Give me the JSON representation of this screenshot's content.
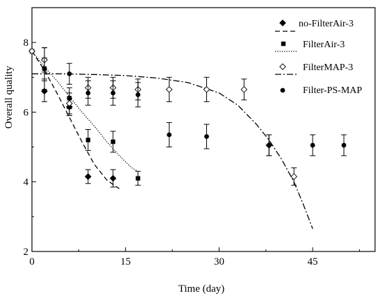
{
  "chart_data": {
    "type": "scatter",
    "xlabel": "Time (day)",
    "ylabel": "Overall quality",
    "xlim": [
      0,
      55
    ],
    "ylim": [
      2,
      9
    ],
    "xticks": [
      0,
      15,
      30,
      45
    ],
    "yticks": [
      2,
      4,
      6,
      8
    ],
    "grid": false,
    "legend_position": "top-right",
    "series": [
      {
        "name": "no-FilterAir-3",
        "marker": "filled-diamond",
        "line": "dashed",
        "points": [
          {
            "x": 0,
            "y": 7.75,
            "err": 0.0
          },
          {
            "x": 2,
            "y": 6.6,
            "err": 0.3
          },
          {
            "x": 6,
            "y": 6.15,
            "err": 0.25
          },
          {
            "x": 9,
            "y": 4.15,
            "err": 0.2
          },
          {
            "x": 13,
            "y": 4.1,
            "err": 0.25
          }
        ],
        "fit": [
          [
            0,
            7.75
          ],
          [
            2,
            7.2
          ],
          [
            4,
            6.55
          ],
          [
            6,
            5.85
          ],
          [
            8,
            5.15
          ],
          [
            10,
            4.5
          ],
          [
            12,
            4.05
          ],
          [
            14,
            3.8
          ]
        ]
      },
      {
        "name": "FilterAir-3",
        "marker": "filled-square",
        "line": "dotted",
        "points": [
          {
            "x": 0,
            "y": 7.75,
            "err": 0.0
          },
          {
            "x": 2,
            "y": 7.25,
            "err": 0.3
          },
          {
            "x": 6,
            "y": 6.4,
            "err": 0.3
          },
          {
            "x": 9,
            "y": 5.2,
            "err": 0.3
          },
          {
            "x": 13,
            "y": 5.15,
            "err": 0.3
          },
          {
            "x": 17,
            "y": 4.1,
            "err": 0.2
          }
        ],
        "fit": [
          [
            0,
            7.75
          ],
          [
            2,
            7.3
          ],
          [
            4,
            6.9
          ],
          [
            6,
            6.45
          ],
          [
            8,
            6.0
          ],
          [
            10,
            5.6
          ],
          [
            12,
            5.15
          ],
          [
            14,
            4.75
          ],
          [
            16,
            4.4
          ],
          [
            17,
            4.3
          ]
        ]
      },
      {
        "name": "FilterMAP-3",
        "marker": "open-diamond",
        "line": "dash-dot",
        "points": [
          {
            "x": 0,
            "y": 7.75,
            "err": 0.0
          },
          {
            "x": 2,
            "y": 7.5,
            "err": 0.35
          },
          {
            "x": 6,
            "y": 6.25,
            "err": 0.3
          },
          {
            "x": 9,
            "y": 6.7,
            "err": 0.3
          },
          {
            "x": 13,
            "y": 6.7,
            "err": 0.3
          },
          {
            "x": 17,
            "y": 6.65,
            "err": 0.3
          },
          {
            "x": 22,
            "y": 6.65,
            "err": 0.35
          },
          {
            "x": 28,
            "y": 6.65,
            "err": 0.35
          },
          {
            "x": 34,
            "y": 6.65,
            "err": 0.3
          },
          {
            "x": 38,
            "y": 5.05,
            "err": 0.3
          },
          {
            "x": 42,
            "y": 4.15,
            "err": 0.25
          }
        ],
        "fit": [
          [
            0,
            7.1
          ],
          [
            5,
            7.1
          ],
          [
            10,
            7.08
          ],
          [
            15,
            7.05
          ],
          [
            20,
            6.98
          ],
          [
            25,
            6.85
          ],
          [
            30,
            6.55
          ],
          [
            33,
            6.2
          ],
          [
            36,
            5.65
          ],
          [
            38,
            5.2
          ],
          [
            40,
            4.65
          ],
          [
            42,
            4.0
          ],
          [
            43.5,
            3.35
          ],
          [
            45,
            2.65
          ]
        ]
      },
      {
        "name": "Filter-PS-MAP",
        "marker": "filled-circle",
        "line": "none",
        "points": [
          {
            "x": 2,
            "y": 7.25,
            "err": 0.6
          },
          {
            "x": 6,
            "y": 7.1,
            "err": 0.3
          },
          {
            "x": 9,
            "y": 6.55,
            "err": 0.35
          },
          {
            "x": 13,
            "y": 6.55,
            "err": 0.35
          },
          {
            "x": 17,
            "y": 6.5,
            "err": 0.35
          },
          {
            "x": 22,
            "y": 5.35,
            "err": 0.35
          },
          {
            "x": 28,
            "y": 5.3,
            "err": 0.35
          },
          {
            "x": 38,
            "y": 5.05,
            "err": 0.3
          },
          {
            "x": 45,
            "y": 5.05,
            "err": 0.3
          },
          {
            "x": 50,
            "y": 5.05,
            "err": 0.3
          }
        ]
      }
    ]
  }
}
